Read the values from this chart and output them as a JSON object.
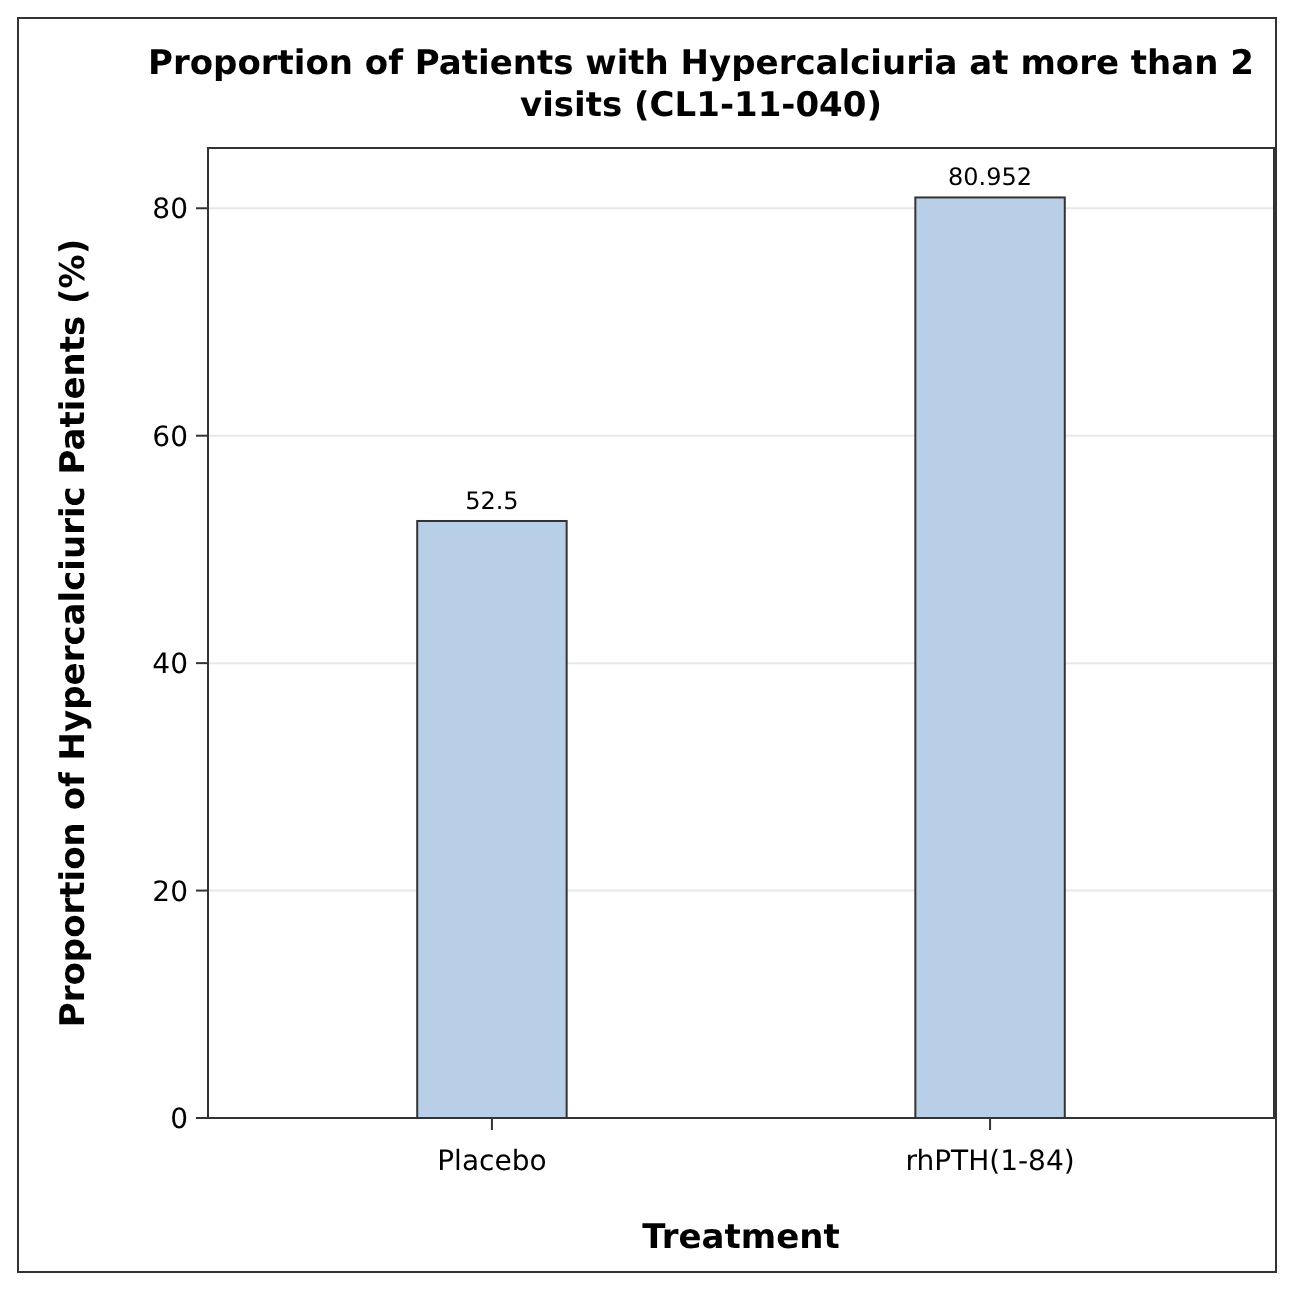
{
  "chart_data": {
    "type": "bar",
    "title": "Proportion of Patients with Hypercalciuria at more than 2 visits (CL1-11-040)",
    "xlabel": "Treatment",
    "ylabel": "Proportion of Hypercalciuric Patients (%)",
    "categories": [
      "Placebo",
      "rhPTH(1-84)"
    ],
    "values": [
      52.5,
      80.952
    ],
    "color": "#b9cfe7",
    "ylim": [
      0,
      85.3
    ],
    "yticks": [
      0,
      20,
      40,
      60,
      80
    ],
    "grid": "y",
    "data_labels": true
  }
}
